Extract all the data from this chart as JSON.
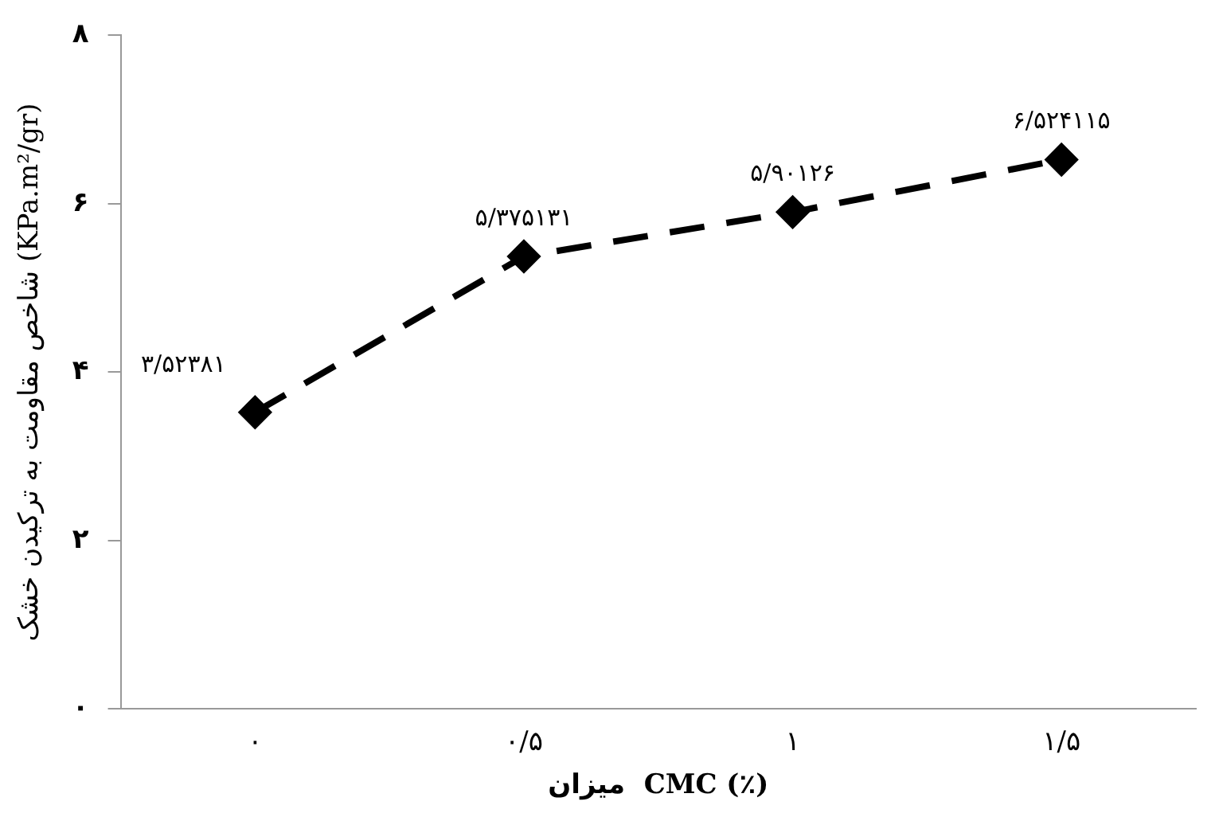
{
  "chart_data": {
    "type": "line",
    "xlabel": "میزان  CMC (٪)",
    "ylabel": "شاخص مقاومت به ترکیدن خشک (KPa.m²/gr)",
    "categories": [
      "۰",
      "۰/۵",
      "۱",
      "۱/۵"
    ],
    "series": [
      {
        "color": "#000000",
        "values": [
          3.52381,
          5.375131,
          5.90126,
          6.524115
        ],
        "value_labels": [
          "۳/۵۲۳۸۱",
          "۵/۳۷۵۱۳۱",
          "۵/۹۰۱۲۶",
          "۶/۵۲۴۱۱۵"
        ]
      }
    ],
    "ylim": [
      0,
      8
    ],
    "yticks": [
      {
        "value": 0,
        "label": "۰"
      },
      {
        "value": 2,
        "label": "۲"
      },
      {
        "value": 4,
        "label": "۴"
      },
      {
        "value": 6,
        "label": "۶"
      },
      {
        "value": 8,
        "label": "۸"
      }
    ],
    "grid": false,
    "legend": false,
    "marker": "diamond",
    "line_style": "dashed"
  }
}
